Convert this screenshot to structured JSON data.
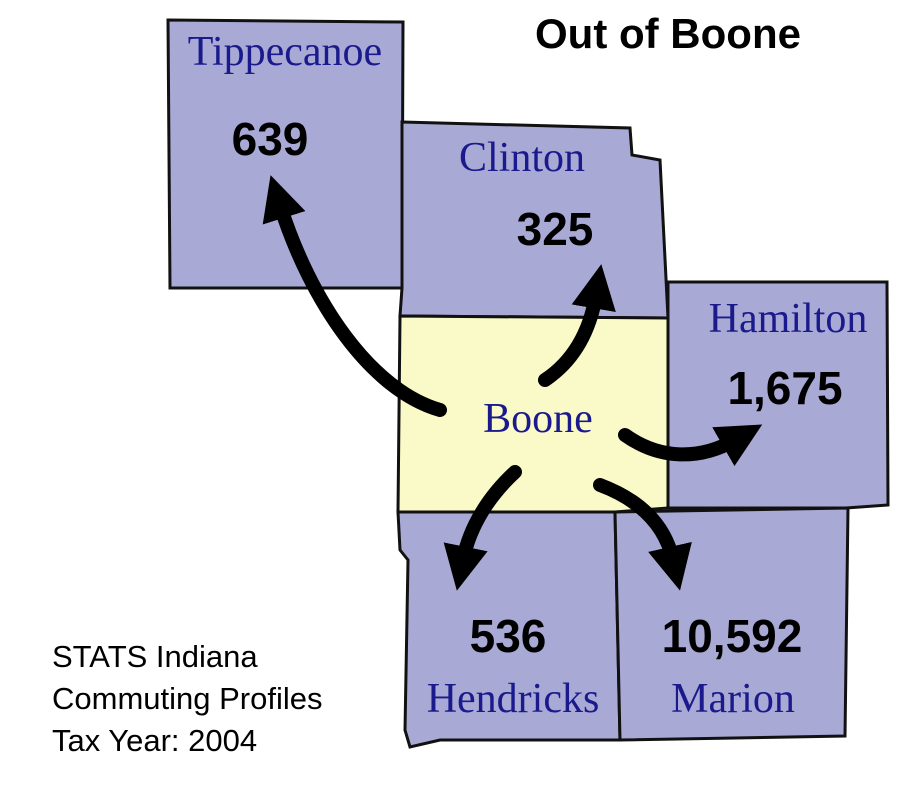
{
  "title": "Out of Boone",
  "origin": {
    "name": "Boone"
  },
  "counties": [
    {
      "name": "Tippecanoe",
      "count": "639"
    },
    {
      "name": "Clinton",
      "count": "325"
    },
    {
      "name": "Hamilton",
      "count": "1,675"
    },
    {
      "name": "Hendricks",
      "count": "536"
    },
    {
      "name": "Marion",
      "count": "10,592"
    }
  ],
  "source": [
    "STATS Indiana",
    "Commuting Profiles",
    "Tax Year: 2004"
  ]
}
